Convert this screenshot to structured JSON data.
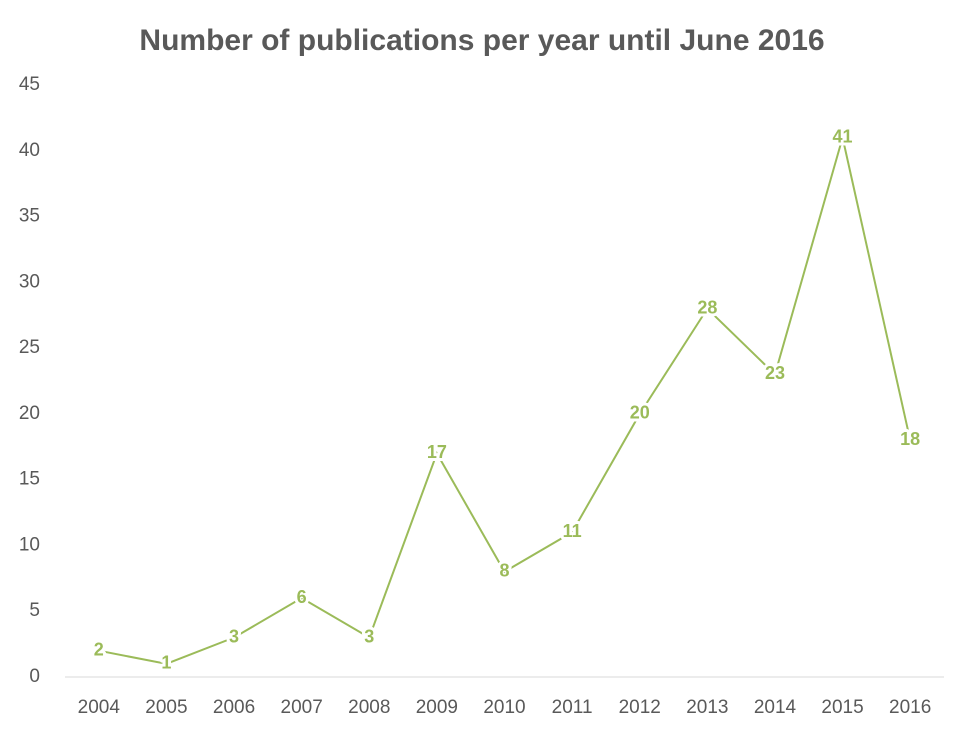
{
  "chart_data": {
    "type": "line",
    "title": "Number of publications per year until June 2016",
    "categories": [
      "2004",
      "2005",
      "2006",
      "2007",
      "2008",
      "2009",
      "2010",
      "2011",
      "2012",
      "2013",
      "2014",
      "2015",
      "2016"
    ],
    "values": [
      2,
      1,
      3,
      6,
      3,
      17,
      8,
      11,
      20,
      28,
      23,
      41,
      18
    ],
    "color": "#9bbb59",
    "ylim": [
      0,
      45
    ],
    "yticks": [
      0,
      5,
      10,
      15,
      20,
      25,
      30,
      35,
      40,
      45
    ],
    "grid": false,
    "data_labels": true
  }
}
